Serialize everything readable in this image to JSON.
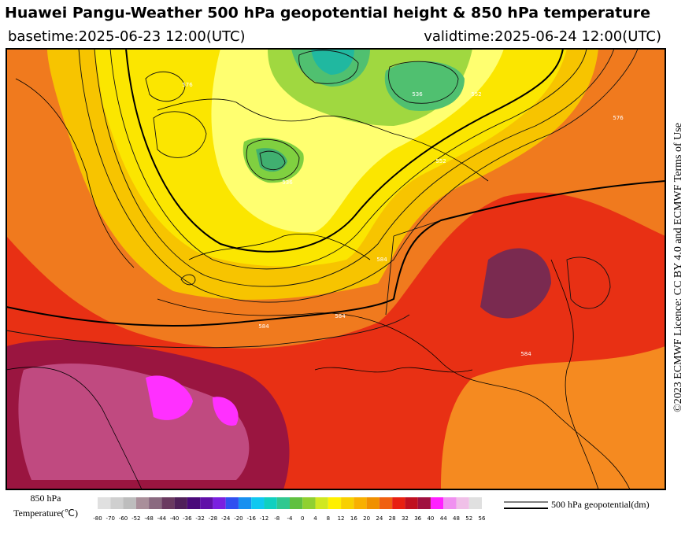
{
  "header": {
    "title": "Huawei Pangu-Weather 500 hPa geopotential height & 850 hPa temperature",
    "basetime": "basetime:2025-06-23 12:00(UTC)",
    "validtime": "validtime:2025-06-24 12:00(UTC)"
  },
  "credit": "©2023 ECMWF Licence: CC BY 4.0 and ECMWF Terms of Use",
  "contour_labels": [
    "576",
    "552",
    "536",
    "536",
    "552",
    "576",
    "584",
    "584",
    "584",
    "584"
  ],
  "legend": {
    "temperature_label": [
      "850 hPa",
      "Temperature(℃)"
    ],
    "contour_label": "500 hPa geopotential(dm)",
    "ticks": [
      -80,
      -70,
      -60,
      -52,
      -48,
      -44,
      -40,
      -36,
      -32,
      -28,
      -24,
      -20,
      -16,
      -12,
      -8,
      -4,
      0,
      4,
      8,
      12,
      16,
      20,
      24,
      28,
      32,
      36,
      40,
      44,
      48,
      52,
      56
    ],
    "colors": [
      "#e0e0e0",
      "#cfcfcf",
      "#bdbdbd",
      "#a98f9a",
      "#8a6a80",
      "#6a3a60",
      "#50205a",
      "#4a0a7a",
      "#6010a8",
      "#7a20e0",
      "#3050f0",
      "#1890f0",
      "#10c8f0",
      "#10d0c0",
      "#30c890",
      "#60c040",
      "#90d030",
      "#d0e820",
      "#fff000",
      "#f8d000",
      "#f8b000",
      "#f09000",
      "#f06010",
      "#e82010",
      "#c01020",
      "#a01040",
      "#ff20ff",
      "#f090f0",
      "#f0c0e8",
      "#e0e0e0"
    ]
  }
}
